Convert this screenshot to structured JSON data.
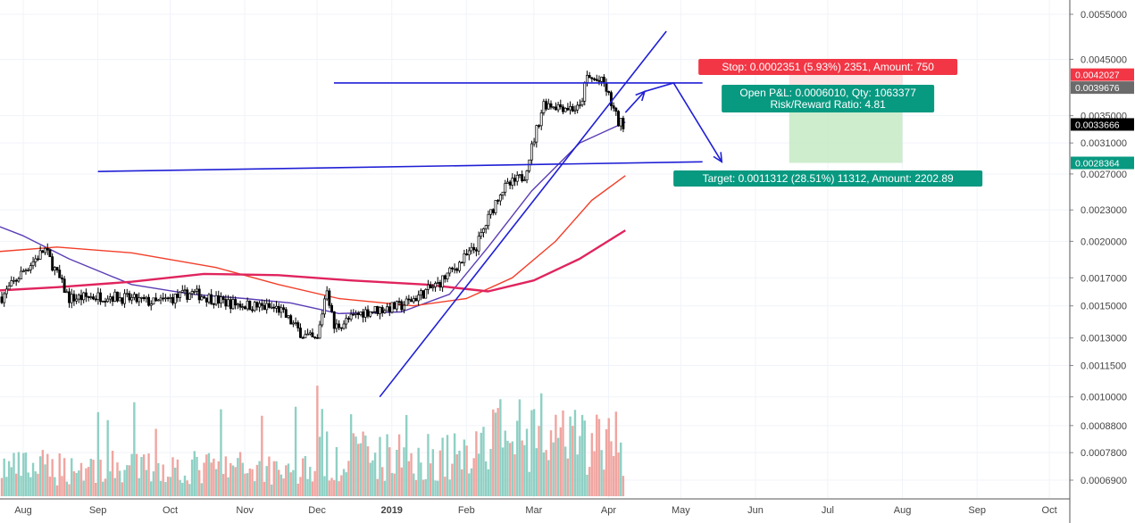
{
  "chart_data": {
    "type": "candlestick",
    "y_scale": "log",
    "ylim": [
      0.00064,
      0.0058
    ],
    "grid": true,
    "x_tick_labels": [
      "Aug",
      "Sep",
      "Oct",
      "Nov",
      "Dec",
      "2019",
      "Feb",
      "Mar",
      "Apr",
      "May",
      "Jun",
      "Jul",
      "Aug",
      "Sep",
      "Oct"
    ],
    "y_tick_labels": [
      "0.0055000",
      "0.0045000",
      "0.0035000",
      "0.0031000",
      "0.0027000",
      "0.0023000",
      "0.0020000",
      "0.0017000",
      "0.0015000",
      "0.0013000",
      "0.0011500",
      "0.0010000",
      "0.0008800",
      "0.0007800",
      "0.0006900"
    ],
    "price_badges": [
      {
        "value": "0.0042027",
        "color": "#f23645"
      },
      {
        "value": "0.0039676",
        "color": "#6b6b6b"
      },
      {
        "value": "0.0033666",
        "color": "#000000"
      },
      {
        "value": "0.0028364",
        "color": "#089981"
      }
    ],
    "price": {
      "key_closes": [
        {
          "date": "2018-07-20",
          "close": 0.0015
        },
        {
          "date": "2018-08-01",
          "close": 0.00175
        },
        {
          "date": "2018-08-10",
          "close": 0.00193
        },
        {
          "date": "2018-08-20",
          "close": 0.00155
        },
        {
          "date": "2018-09-05",
          "close": 0.00157
        },
        {
          "date": "2018-09-25",
          "close": 0.00152
        },
        {
          "date": "2018-10-10",
          "close": 0.00159
        },
        {
          "date": "2018-10-25",
          "close": 0.00152
        },
        {
          "date": "2018-11-15",
          "close": 0.00148
        },
        {
          "date": "2018-11-25",
          "close": 0.00132
        },
        {
          "date": "2018-12-01",
          "close": 0.00128
        },
        {
          "date": "2018-12-05",
          "close": 0.00164
        },
        {
          "date": "2018-12-08",
          "close": 0.00136
        },
        {
          "date": "2018-12-20",
          "close": 0.00146
        },
        {
          "date": "2019-01-05",
          "close": 0.0015
        },
        {
          "date": "2019-01-20",
          "close": 0.00165
        },
        {
          "date": "2019-02-05",
          "close": 0.00195
        },
        {
          "date": "2019-02-15",
          "close": 0.0025
        },
        {
          "date": "2019-02-25",
          "close": 0.00268
        },
        {
          "date": "2019-03-05",
          "close": 0.0037
        },
        {
          "date": "2019-03-20",
          "close": 0.0036
        },
        {
          "date": "2019-03-23",
          "close": 0.00415
        },
        {
          "date": "2019-03-30",
          "close": 0.00405
        },
        {
          "date": "2019-04-05",
          "close": 0.0034
        },
        {
          "date": "2019-04-08",
          "close": 0.00337
        }
      ]
    },
    "moving_averages": [
      {
        "color": "#5b3db5",
        "points": [
          [
            0.0022,
            "2018-07-15"
          ],
          [
            0.00205,
            "2018-08-01"
          ],
          [
            0.00185,
            "2018-08-20"
          ],
          [
            0.00165,
            "2018-09-15"
          ],
          [
            0.00158,
            "2018-10-10"
          ],
          [
            0.00155,
            "2018-11-01"
          ],
          [
            0.00152,
            "2018-11-20"
          ],
          [
            0.00145,
            "2018-12-10"
          ],
          [
            0.00146,
            "2019-01-05"
          ],
          [
            0.00158,
            "2019-01-25"
          ],
          [
            0.00195,
            "2019-02-10"
          ],
          [
            0.0025,
            "2019-02-28"
          ],
          [
            0.0031,
            "2019-03-20"
          ],
          [
            0.0034,
            "2019-04-08"
          ]
        ]
      },
      {
        "color": "#f23f2a",
        "points": [
          [
            0.0019,
            "2018-07-15"
          ],
          [
            0.00195,
            "2018-08-15"
          ],
          [
            0.0019,
            "2018-09-15"
          ],
          [
            0.00178,
            "2018-10-20"
          ],
          [
            0.00165,
            "2018-11-15"
          ],
          [
            0.00155,
            "2018-12-10"
          ],
          [
            0.0015,
            "2019-01-10"
          ],
          [
            0.00155,
            "2019-02-01"
          ],
          [
            0.0017,
            "2019-02-20"
          ],
          [
            0.002,
            "2019-03-10"
          ],
          [
            0.0024,
            "2019-03-25"
          ],
          [
            0.00268,
            "2019-04-08"
          ]
        ]
      },
      {
        "color": "#e0245e",
        "points": [
          [
            0.0016,
            "2018-07-15"
          ],
          [
            0.00163,
            "2018-08-15"
          ],
          [
            0.00167,
            "2018-09-15"
          ],
          [
            0.00173,
            "2018-10-15"
          ],
          [
            0.00172,
            "2018-11-15"
          ],
          [
            0.00168,
            "2018-12-15"
          ],
          [
            0.00165,
            "2019-01-15"
          ],
          [
            0.0016,
            "2019-02-10"
          ],
          [
            0.00168,
            "2019-03-01"
          ],
          [
            0.00185,
            "2019-03-20"
          ],
          [
            0.0021,
            "2019-04-08"
          ]
        ]
      }
    ],
    "trendlines": [
      {
        "points": [
          [
            "2018-12-27",
            0.001
          ],
          [
            "2019-04-25",
            0.0051
          ]
        ],
        "color": "#1f1fd6"
      },
      {
        "points": [
          [
            "2018-12-08",
            0.00405
          ],
          [
            "2019-05-10",
            0.00405
          ]
        ],
        "color": "#1f1fd6"
      },
      {
        "points": [
          [
            "2018-09-01",
            0.00273
          ],
          [
            "2019-05-10",
            0.00285
          ]
        ],
        "color": "#1f1fd6"
      }
    ],
    "projection_arrow": [
      [
        "2019-04-08",
        0.00355
      ],
      [
        "2019-04-16",
        0.0039
      ],
      [
        "2019-04-28",
        0.00405
      ],
      [
        "2019-05-18",
        0.00285
      ]
    ],
    "position": {
      "stop_label": "Stop: 0.0002351 (5.93%) 2351, Amount: 750",
      "pnl_label": "Open P&L: 0.0006010, Qty: 1063377",
      "rr_label": "Risk/Reward Ratio: 4.81",
      "target_label": "Target: 0.0011312 (28.51%) 11312, Amount: 2202.89",
      "entry": 0.0039676,
      "stop": 0.0042027,
      "target": 0.0028364,
      "from": "2019-06-15",
      "to": "2019-08-01",
      "profit_color": "#c8ebc8",
      "stop_color": "#f23645",
      "target_color": "#089981"
    },
    "volume": {
      "up_color": "#8fd0c4",
      "down_color": "#f0a5a0"
    }
  }
}
